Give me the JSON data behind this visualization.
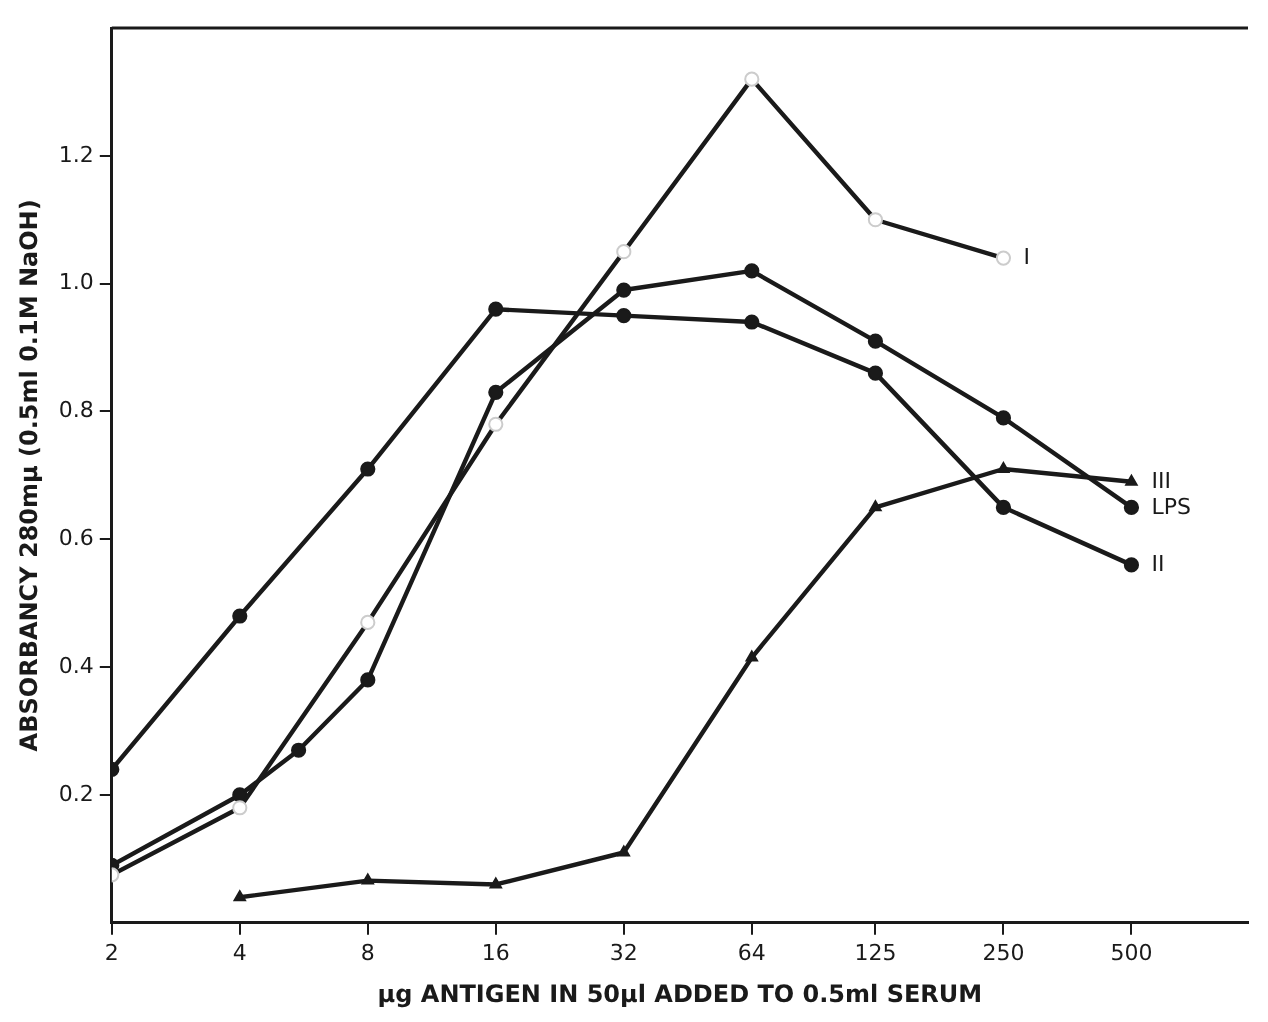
{
  "chart_data": {
    "type": "line",
    "xlabel": "μg ANTIGEN IN 50μl ADDED TO 0.5ml SERUM",
    "ylabel": "ABSORBANCY 280mμ (0.5ml 0.1M NaOH)",
    "x": [
      2,
      4,
      8,
      16,
      32,
      64,
      125,
      250,
      500
    ],
    "series": [
      {
        "name": "I",
        "color": "#1a1a1a",
        "marker": "circle_open",
        "values": [
          0.075,
          0.18,
          0.47,
          0.78,
          1.05,
          1.32,
          1.1,
          1.04,
          null
        ]
      },
      {
        "name": "II",
        "color": "#1a1a1a",
        "marker": "circle",
        "values": [
          0.24,
          0.48,
          0.71,
          0.96,
          0.95,
          0.94,
          0.86,
          0.65,
          0.56
        ]
      },
      {
        "name": "III",
        "color": "#1a1a1a",
        "marker": "triangle",
        "values": [
          null,
          0.04,
          0.066,
          0.06,
          0.11,
          0.415,
          0.65,
          0.71,
          0.69
        ]
      },
      {
        "name": "LPS",
        "color": "#1a1a1a",
        "marker": "circle",
        "x": [
          2,
          4,
          5.5,
          8,
          16,
          32,
          64,
          125,
          250,
          500
        ],
        "values": [
          0.09,
          0.2,
          0.27,
          0.38,
          0.83,
          0.99,
          1.02,
          0.91,
          0.79,
          0.65
        ]
      }
    ],
    "log": "x",
    "xlim": [
      2,
      940
    ],
    "xticks": [
      2,
      4,
      8,
      16,
      32,
      64,
      125,
      250,
      500
    ],
    "ylim": [
      0,
      1.4
    ],
    "yticks": [
      0.2,
      0.4,
      0.6,
      0.8,
      {
        "value": 1.0,
        "label": "1.0"
      },
      1.2
    ],
    "grid": false,
    "legend": false,
    "line_style": "solid"
  }
}
